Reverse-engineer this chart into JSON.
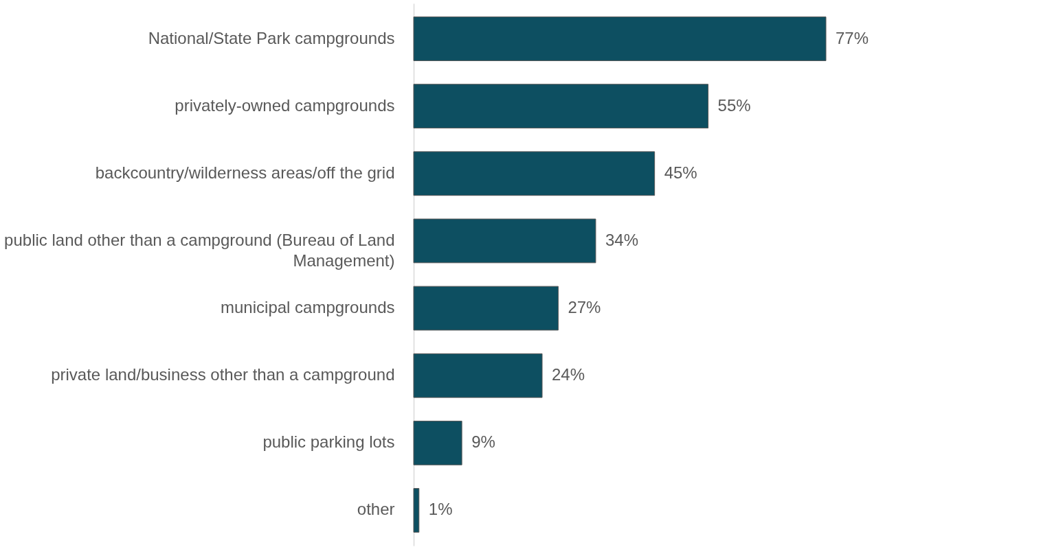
{
  "chart_data": {
    "type": "bar",
    "orientation": "horizontal",
    "categories": [
      "National/State Park campgrounds",
      "privately-owned campgrounds",
      "backcountry/wilderness areas/off the grid",
      "public land other than a campground (Bureau of Land Management)",
      "municipal campgrounds",
      "private land/business other than a campground",
      "public parking lots",
      "other"
    ],
    "values": [
      77,
      55,
      45,
      34,
      27,
      24,
      9,
      1
    ],
    "value_labels": [
      "77%",
      "55%",
      "45%",
      "34%",
      "27%",
      "24%",
      "9%",
      "1%"
    ],
    "color": "#0d4f61"
  }
}
